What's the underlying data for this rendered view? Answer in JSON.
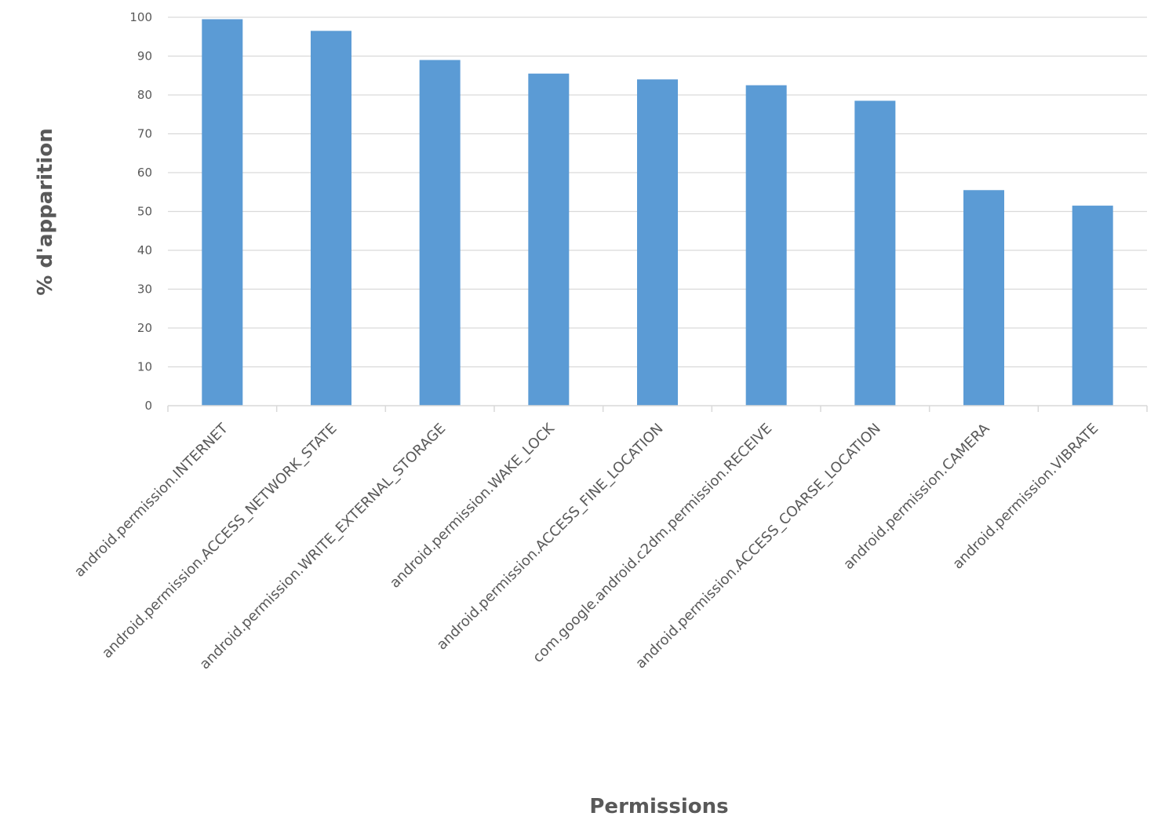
{
  "chart_data": {
    "type": "bar",
    "title": "",
    "xlabel": "Permissions",
    "ylabel": "% d'apparition",
    "ylim": [
      0,
      100
    ],
    "yticks": [
      0,
      10,
      20,
      30,
      40,
      50,
      60,
      70,
      80,
      90,
      100
    ],
    "grid": true,
    "legend": "none",
    "bar_color": "#5b9bd5",
    "categories": [
      "android.permission.INTERNET",
      "android.permission.ACCESS_NETWORK_STATE",
      "android.permission.WRITE_EXTERNAL_STORAGE",
      "android.permission.WAKE_LOCK",
      "android.permission.ACCESS_FINE_LOCATION",
      "com.google.android.c2dm.permission.RECEIVE",
      "android.permission.ACCESS_COARSE_LOCATION",
      "android.permission.CAMERA",
      "android.permission.VIBRATE"
    ],
    "values": [
      99.5,
      96.5,
      89,
      85.5,
      84,
      82.5,
      78.5,
      55.5,
      51.5
    ]
  }
}
